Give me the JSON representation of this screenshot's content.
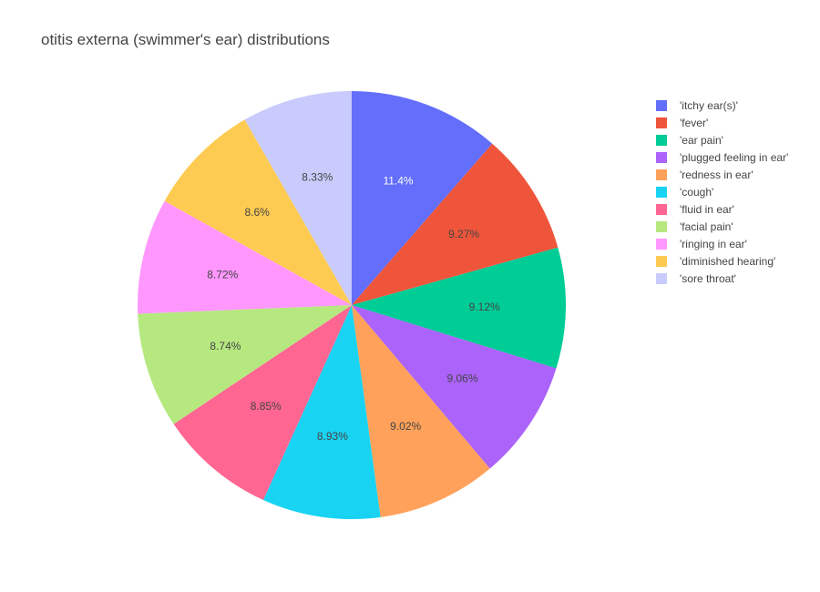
{
  "chart_data": {
    "type": "pie",
    "title": "otitis externa (swimmer's ear) distributions",
    "categories": [
      "'itchy ear(s)'",
      "'fever'",
      "'ear pain'",
      "'plugged feeling in ear'",
      "'redness in ear'",
      "'cough'",
      "'fluid in ear'",
      "'facial pain'",
      "'ringing in ear'",
      "'diminished hearing'",
      "'sore throat'"
    ],
    "values": [
      11.4,
      9.27,
      9.12,
      9.06,
      9.02,
      8.93,
      8.85,
      8.74,
      8.72,
      8.6,
      8.33
    ],
    "labels": [
      "11.4%",
      "9.27%",
      "9.12%",
      "9.06%",
      "9.02%",
      "8.93%",
      "8.85%",
      "8.74%",
      "8.72%",
      "8.6%",
      "8.33%"
    ],
    "colors": [
      "#636efa",
      "#EF553B",
      "#00cc96",
      "#ab63fa",
      "#FFA15A",
      "#19d3f3",
      "#FF6692",
      "#B6E880",
      "#FF97FF",
      "#FECB52",
      "#c9cbfd"
    ],
    "label_colors": [
      "#ffffff",
      "#444444",
      "#444444",
      "#444444",
      "#444444",
      "#444444",
      "#444444",
      "#444444",
      "#444444",
      "#444444",
      "#444444"
    ],
    "direction": "clockwise",
    "start": "top",
    "legend_position": "right"
  }
}
